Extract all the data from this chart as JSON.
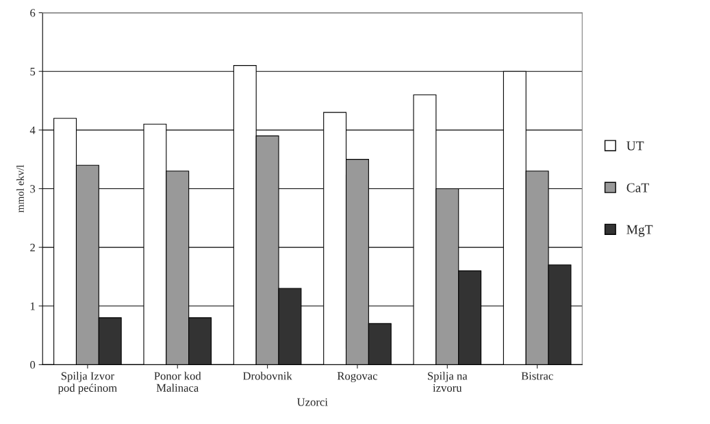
{
  "chart_data": {
    "type": "bar",
    "xlabel": "Uzorci",
    "ylabel": "mmol ekv/l",
    "categories": [
      "Spilja Izvor\npod pećinom",
      "Ponor kod\nMalinaca",
      "Drobovnik",
      "Rogovac",
      "Spilja na\nizvoru",
      "Bistrac"
    ],
    "series": [
      {
        "name": "UT",
        "color": "#ffffff",
        "values": [
          4.2,
          4.1,
          5.1,
          4.3,
          4.6,
          5.0
        ]
      },
      {
        "name": "CaT",
        "color": "#999999",
        "values": [
          3.4,
          3.3,
          3.9,
          3.5,
          3.0,
          3.3
        ]
      },
      {
        "name": "MgT",
        "color": "#333333",
        "values": [
          0.8,
          0.8,
          1.3,
          0.7,
          1.6,
          1.7
        ]
      }
    ],
    "ylim": [
      0,
      6
    ],
    "yticks": [
      0,
      1,
      2,
      3,
      4,
      5,
      6
    ],
    "grid": "y",
    "legend": "right"
  }
}
